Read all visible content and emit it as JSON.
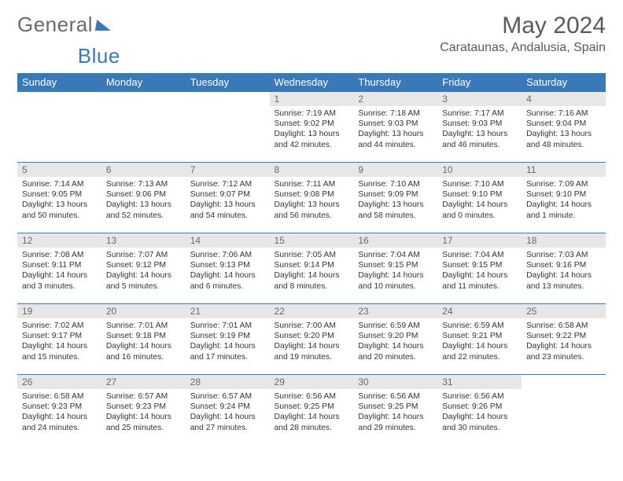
{
  "brand": {
    "part1": "General",
    "part2": "Blue"
  },
  "title": "May 2024",
  "location": "Carataunas, Andalusia, Spain",
  "day_headers": [
    "Sunday",
    "Monday",
    "Tuesday",
    "Wednesday",
    "Thursday",
    "Friday",
    "Saturday"
  ],
  "colors": {
    "header_bg": "#3a79b7",
    "header_text": "#ffffff",
    "daynum_bg": "#e7e7e7",
    "border": "#3a79b7",
    "text": "#333333",
    "muted": "#6a6a6a"
  },
  "weeks": [
    [
      {
        "empty": true
      },
      {
        "empty": true
      },
      {
        "empty": true
      },
      {
        "num": "1",
        "l1": "Sunrise: 7:19 AM",
        "l2": "Sunset: 9:02 PM",
        "l3": "Daylight: 13 hours",
        "l4": "and 42 minutes."
      },
      {
        "num": "2",
        "l1": "Sunrise: 7:18 AM",
        "l2": "Sunset: 9:03 PM",
        "l3": "Daylight: 13 hours",
        "l4": "and 44 minutes."
      },
      {
        "num": "3",
        "l1": "Sunrise: 7:17 AM",
        "l2": "Sunset: 9:03 PM",
        "l3": "Daylight: 13 hours",
        "l4": "and 46 minutes."
      },
      {
        "num": "4",
        "l1": "Sunrise: 7:16 AM",
        "l2": "Sunset: 9:04 PM",
        "l3": "Daylight: 13 hours",
        "l4": "and 48 minutes."
      }
    ],
    [
      {
        "num": "5",
        "l1": "Sunrise: 7:14 AM",
        "l2": "Sunset: 9:05 PM",
        "l3": "Daylight: 13 hours",
        "l4": "and 50 minutes."
      },
      {
        "num": "6",
        "l1": "Sunrise: 7:13 AM",
        "l2": "Sunset: 9:06 PM",
        "l3": "Daylight: 13 hours",
        "l4": "and 52 minutes."
      },
      {
        "num": "7",
        "l1": "Sunrise: 7:12 AM",
        "l2": "Sunset: 9:07 PM",
        "l3": "Daylight: 13 hours",
        "l4": "and 54 minutes."
      },
      {
        "num": "8",
        "l1": "Sunrise: 7:11 AM",
        "l2": "Sunset: 9:08 PM",
        "l3": "Daylight: 13 hours",
        "l4": "and 56 minutes."
      },
      {
        "num": "9",
        "l1": "Sunrise: 7:10 AM",
        "l2": "Sunset: 9:09 PM",
        "l3": "Daylight: 13 hours",
        "l4": "and 58 minutes."
      },
      {
        "num": "10",
        "l1": "Sunrise: 7:10 AM",
        "l2": "Sunset: 9:10 PM",
        "l3": "Daylight: 14 hours",
        "l4": "and 0 minutes."
      },
      {
        "num": "11",
        "l1": "Sunrise: 7:09 AM",
        "l2": "Sunset: 9:10 PM",
        "l3": "Daylight: 14 hours",
        "l4": "and 1 minute."
      }
    ],
    [
      {
        "num": "12",
        "l1": "Sunrise: 7:08 AM",
        "l2": "Sunset: 9:11 PM",
        "l3": "Daylight: 14 hours",
        "l4": "and 3 minutes."
      },
      {
        "num": "13",
        "l1": "Sunrise: 7:07 AM",
        "l2": "Sunset: 9:12 PM",
        "l3": "Daylight: 14 hours",
        "l4": "and 5 minutes."
      },
      {
        "num": "14",
        "l1": "Sunrise: 7:06 AM",
        "l2": "Sunset: 9:13 PM",
        "l3": "Daylight: 14 hours",
        "l4": "and 6 minutes."
      },
      {
        "num": "15",
        "l1": "Sunrise: 7:05 AM",
        "l2": "Sunset: 9:14 PM",
        "l3": "Daylight: 14 hours",
        "l4": "and 8 minutes."
      },
      {
        "num": "16",
        "l1": "Sunrise: 7:04 AM",
        "l2": "Sunset: 9:15 PM",
        "l3": "Daylight: 14 hours",
        "l4": "and 10 minutes."
      },
      {
        "num": "17",
        "l1": "Sunrise: 7:04 AM",
        "l2": "Sunset: 9:15 PM",
        "l3": "Daylight: 14 hours",
        "l4": "and 11 minutes."
      },
      {
        "num": "18",
        "l1": "Sunrise: 7:03 AM",
        "l2": "Sunset: 9:16 PM",
        "l3": "Daylight: 14 hours",
        "l4": "and 13 minutes."
      }
    ],
    [
      {
        "num": "19",
        "l1": "Sunrise: 7:02 AM",
        "l2": "Sunset: 9:17 PM",
        "l3": "Daylight: 14 hours",
        "l4": "and 15 minutes."
      },
      {
        "num": "20",
        "l1": "Sunrise: 7:01 AM",
        "l2": "Sunset: 9:18 PM",
        "l3": "Daylight: 14 hours",
        "l4": "and 16 minutes."
      },
      {
        "num": "21",
        "l1": "Sunrise: 7:01 AM",
        "l2": "Sunset: 9:19 PM",
        "l3": "Daylight: 14 hours",
        "l4": "and 17 minutes."
      },
      {
        "num": "22",
        "l1": "Sunrise: 7:00 AM",
        "l2": "Sunset: 9:20 PM",
        "l3": "Daylight: 14 hours",
        "l4": "and 19 minutes."
      },
      {
        "num": "23",
        "l1": "Sunrise: 6:59 AM",
        "l2": "Sunset: 9:20 PM",
        "l3": "Daylight: 14 hours",
        "l4": "and 20 minutes."
      },
      {
        "num": "24",
        "l1": "Sunrise: 6:59 AM",
        "l2": "Sunset: 9:21 PM",
        "l3": "Daylight: 14 hours",
        "l4": "and 22 minutes."
      },
      {
        "num": "25",
        "l1": "Sunrise: 6:58 AM",
        "l2": "Sunset: 9:22 PM",
        "l3": "Daylight: 14 hours",
        "l4": "and 23 minutes."
      }
    ],
    [
      {
        "num": "26",
        "l1": "Sunrise: 6:58 AM",
        "l2": "Sunset: 9:23 PM",
        "l3": "Daylight: 14 hours",
        "l4": "and 24 minutes."
      },
      {
        "num": "27",
        "l1": "Sunrise: 6:57 AM",
        "l2": "Sunset: 9:23 PM",
        "l3": "Daylight: 14 hours",
        "l4": "and 25 minutes."
      },
      {
        "num": "28",
        "l1": "Sunrise: 6:57 AM",
        "l2": "Sunset: 9:24 PM",
        "l3": "Daylight: 14 hours",
        "l4": "and 27 minutes."
      },
      {
        "num": "29",
        "l1": "Sunrise: 6:56 AM",
        "l2": "Sunset: 9:25 PM",
        "l3": "Daylight: 14 hours",
        "l4": "and 28 minutes."
      },
      {
        "num": "30",
        "l1": "Sunrise: 6:56 AM",
        "l2": "Sunset: 9:25 PM",
        "l3": "Daylight: 14 hours",
        "l4": "and 29 minutes."
      },
      {
        "num": "31",
        "l1": "Sunrise: 6:56 AM",
        "l2": "Sunset: 9:26 PM",
        "l3": "Daylight: 14 hours",
        "l4": "and 30 minutes."
      },
      {
        "empty": true
      }
    ]
  ]
}
